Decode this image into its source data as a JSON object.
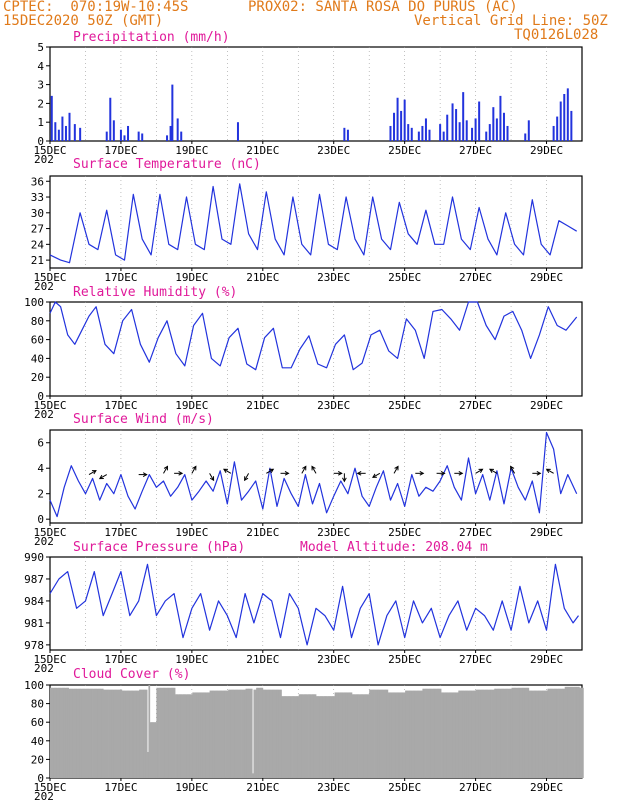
{
  "header": {
    "line1_left": "CPTEC:  070:19W-10:45S",
    "line1_right": "PROX02: SANTA ROSA DO PURUS (AC)",
    "line2_left": "15DEC2020 50Z (GMT)",
    "line2_right": "Vertical Grid Line: 50Z",
    "line3_right": "TQ0126L028"
  },
  "x_labels": [
    "15DEC",
    "17DEC",
    "19DEC",
    "21DEC",
    "23DEC",
    "25DEC",
    "27DEC",
    "29DEC"
  ],
  "x_sublabel": "202",
  "colors": {
    "line": "#2233dd",
    "bar": "#2233dd",
    "cloud": "#a9a9a9",
    "title": "#e0199a",
    "header": "#e07a1a"
  },
  "chart_data": [
    {
      "type": "bar",
      "title": "Precipitation (mm/h)",
      "ylim": [
        0,
        5
      ],
      "yticks": [
        0,
        1,
        2,
        3,
        4,
        5
      ],
      "x_days_from_15DEC": [
        0.05,
        0.15,
        0.25,
        0.35,
        0.45,
        0.55,
        0.7,
        0.85,
        1.6,
        1.7,
        1.8,
        2.0,
        2.1,
        2.2,
        2.5,
        2.6,
        3.3,
        3.4,
        3.45,
        3.6,
        3.7,
        5.3,
        8.3,
        8.4,
        9.6,
        9.7,
        9.8,
        9.9,
        10.0,
        10.1,
        10.2,
        10.4,
        10.5,
        10.6,
        10.7,
        11.0,
        11.1,
        11.2,
        11.35,
        11.45,
        11.55,
        11.65,
        11.75,
        11.9,
        12.0,
        12.1,
        12.3,
        12.4,
        12.5,
        12.6,
        12.7,
        12.8,
        12.9,
        13.4,
        13.5,
        14.2,
        14.3,
        14.4,
        14.5,
        14.6,
        14.7
      ],
      "values": [
        2.4,
        1.0,
        0.6,
        1.3,
        0.8,
        1.5,
        0.9,
        0.7,
        0.5,
        2.3,
        1.1,
        0.6,
        0.3,
        0.8,
        0.5,
        0.4,
        0.3,
        0.8,
        3.0,
        1.2,
        0.5,
        1.0,
        0.7,
        0.6,
        0.8,
        1.5,
        2.3,
        1.6,
        2.2,
        0.9,
        0.7,
        0.5,
        0.8,
        1.2,
        0.6,
        0.9,
        0.5,
        1.4,
        2.0,
        1.7,
        1.0,
        2.6,
        1.1,
        0.7,
        1.2,
        2.1,
        0.5,
        0.9,
        1.8,
        1.2,
        2.4,
        1.5,
        0.8,
        0.4,
        1.1,
        0.8,
        1.3,
        2.1,
        2.5,
        2.8,
        1.6
      ]
    },
    {
      "type": "line",
      "title": "Surface Temperature (nC)",
      "ylim": [
        19.5,
        37
      ],
      "yticks": [
        21,
        24,
        27,
        30,
        33,
        36
      ],
      "x_days_from_15DEC": [
        0,
        0.3,
        0.55,
        0.85,
        1.1,
        1.35,
        1.6,
        1.85,
        2.1,
        2.35,
        2.6,
        2.85,
        3.1,
        3.35,
        3.6,
        3.85,
        4.1,
        4.35,
        4.6,
        4.85,
        5.1,
        5.35,
        5.6,
        5.85,
        6.1,
        6.35,
        6.6,
        6.85,
        7.1,
        7.35,
        7.6,
        7.85,
        8.1,
        8.35,
        8.6,
        8.85,
        9.1,
        9.35,
        9.6,
        9.85,
        10.1,
        10.35,
        10.6,
        10.85,
        11.1,
        11.35,
        11.6,
        11.85,
        12.1,
        12.35,
        12.6,
        12.85,
        13.1,
        13.35,
        13.6,
        13.85,
        14.1,
        14.35,
        14.6,
        14.85
      ],
      "values": [
        22,
        21,
        20.5,
        30,
        24,
        23,
        30.5,
        22,
        21,
        33.5,
        25,
        22,
        33.5,
        24,
        23,
        33,
        24,
        23,
        35,
        25,
        24,
        35.5,
        26,
        23,
        34,
        25,
        22,
        33,
        24,
        22,
        33.5,
        24,
        23,
        33,
        25,
        22,
        33,
        25,
        23,
        32,
        26,
        24,
        30.5,
        24,
        24,
        33,
        25,
        23,
        31,
        25,
        22,
        30,
        24,
        22,
        32.5,
        24,
        22,
        28.5,
        27.5,
        26.5
      ]
    },
    {
      "type": "line",
      "title": "Relative Humidity (%)",
      "ylim": [
        0,
        100
      ],
      "yticks": [
        0,
        20,
        40,
        60,
        80,
        100
      ],
      "x_days_from_15DEC": [
        0,
        0.15,
        0.3,
        0.5,
        0.7,
        0.9,
        1.1,
        1.3,
        1.55,
        1.8,
        2.05,
        2.3,
        2.55,
        2.8,
        3.05,
        3.3,
        3.55,
        3.8,
        4.05,
        4.3,
        4.55,
        4.8,
        5.05,
        5.3,
        5.55,
        5.8,
        6.05,
        6.3,
        6.55,
        6.8,
        7.05,
        7.3,
        7.55,
        7.8,
        8.05,
        8.3,
        8.55,
        8.8,
        9.05,
        9.3,
        9.55,
        9.8,
        10.05,
        10.3,
        10.55,
        10.8,
        11.05,
        11.3,
        11.55,
        11.8,
        12.05,
        12.3,
        12.55,
        12.8,
        13.05,
        13.3,
        13.55,
        13.8,
        14.05,
        14.3,
        14.55,
        14.85
      ],
      "values": [
        88,
        100,
        95,
        65,
        55,
        70,
        85,
        95,
        55,
        45,
        80,
        92,
        55,
        36,
        62,
        80,
        45,
        32,
        75,
        88,
        40,
        32,
        62,
        72,
        34,
        28,
        62,
        72,
        30,
        30,
        50,
        64,
        34,
        30,
        55,
        65,
        28,
        35,
        65,
        70,
        48,
        40,
        82,
        70,
        40,
        90,
        92,
        82,
        70,
        100,
        100,
        75,
        60,
        85,
        90,
        70,
        40,
        65,
        95,
        75,
        70,
        84
      ]
    },
    {
      "type": "line",
      "title": "Surface Wind (m/s)",
      "ylim": [
        -0.3,
        7
      ],
      "yticks": [
        0,
        2,
        4,
        6
      ],
      "x_days_from_15DEC": [
        0,
        0.2,
        0.4,
        0.6,
        0.8,
        1.0,
        1.2,
        1.4,
        1.6,
        1.8,
        2.0,
        2.2,
        2.4,
        2.6,
        2.8,
        3.0,
        3.2,
        3.4,
        3.6,
        3.8,
        4.0,
        4.2,
        4.4,
        4.6,
        4.8,
        5.0,
        5.2,
        5.4,
        5.6,
        5.8,
        6.0,
        6.2,
        6.4,
        6.6,
        6.8,
        7.0,
        7.2,
        7.4,
        7.6,
        7.8,
        8.0,
        8.2,
        8.4,
        8.6,
        8.8,
        9.0,
        9.2,
        9.4,
        9.6,
        9.8,
        10.0,
        10.2,
        10.4,
        10.6,
        10.8,
        11.0,
        11.2,
        11.4,
        11.6,
        11.8,
        12.0,
        12.2,
        12.4,
        12.6,
        12.8,
        13.0,
        13.2,
        13.4,
        13.6,
        13.8,
        14.0,
        14.2,
        14.4,
        14.6,
        14.85
      ],
      "values": [
        1.5,
        0.2,
        2.5,
        4.2,
        3.0,
        2.0,
        3.2,
        1.5,
        2.8,
        2.0,
        3.5,
        1.8,
        0.8,
        2.2,
        3.5,
        2.5,
        3.0,
        1.8,
        2.5,
        3.5,
        1.5,
        2.2,
        3.0,
        2.2,
        3.8,
        1.2,
        4.5,
        1.5,
        2.2,
        3.0,
        0.8,
        4.0,
        1.0,
        3.2,
        2.0,
        1.0,
        3.5,
        1.2,
        2.8,
        0.5,
        1.8,
        3.0,
        2.0,
        4.0,
        1.8,
        1.0,
        2.5,
        3.8,
        1.5,
        2.8,
        1.0,
        3.5,
        1.8,
        2.5,
        2.2,
        3.0,
        4.2,
        2.5,
        1.5,
        4.8,
        2.0,
        3.5,
        1.5,
        3.8,
        1.2,
        4.0,
        2.5,
        1.5,
        3.0,
        0.5,
        6.8,
        5.5,
        2.0,
        3.5,
        2.0
      ]
    },
    {
      "type": "line",
      "title": "Surface Pressure (hPa)",
      "annotation": "Model Altitude: 208.04 m",
      "ylim": [
        977.3,
        990
      ],
      "yticks": [
        978,
        981,
        984,
        987,
        990
      ],
      "x_days_from_15DEC": [
        0,
        0.25,
        0.5,
        0.75,
        1.0,
        1.25,
        1.5,
        1.75,
        2.0,
        2.25,
        2.5,
        2.75,
        3.0,
        3.25,
        3.5,
        3.75,
        4.0,
        4.25,
        4.5,
        4.75,
        5.0,
        5.25,
        5.5,
        5.75,
        6.0,
        6.25,
        6.5,
        6.75,
        7.0,
        7.25,
        7.5,
        7.75,
        8.0,
        8.25,
        8.5,
        8.75,
        9.0,
        9.25,
        9.5,
        9.75,
        10.0,
        10.25,
        10.5,
        10.75,
        11.0,
        11.25,
        11.5,
        11.75,
        12.0,
        12.25,
        12.5,
        12.75,
        13.0,
        13.25,
        13.5,
        13.75,
        14.0,
        14.25,
        14.5,
        14.75,
        14.9
      ],
      "values": [
        985,
        987,
        988,
        983,
        984,
        988,
        982,
        985,
        988,
        982,
        984,
        989,
        982,
        984,
        985,
        979,
        983,
        985,
        980,
        984,
        982,
        979,
        985,
        981,
        985,
        984,
        979,
        985,
        983,
        978,
        983,
        982,
        980,
        986,
        979,
        983,
        985,
        978,
        982,
        984,
        979,
        984,
        981,
        983,
        979,
        982,
        984,
        980,
        983,
        982,
        980,
        984,
        980,
        986,
        981,
        984,
        980,
        989,
        983,
        981,
        982
      ]
    },
    {
      "type": "bar",
      "title": "Cloud Cover (%)",
      "ylim": [
        0,
        100
      ],
      "yticks": [
        0,
        20,
        40,
        60,
        80,
        100
      ],
      "x_days_from_15DEC": [
        0,
        0.5,
        1.0,
        1.5,
        2.0,
        2.5,
        2.7,
        2.75,
        2.8,
        3.0,
        3.5,
        4.0,
        4.5,
        5.0,
        5.5,
        5.7,
        5.72,
        5.8,
        6.0,
        6.5,
        7.0,
        7.5,
        8.0,
        8.5,
        9.0,
        9.5,
        10.0,
        10.5,
        11.0,
        11.5,
        12.0,
        12.5,
        13.0,
        13.5,
        14.0,
        14.5,
        14.9
      ],
      "values": [
        97,
        96,
        96,
        95,
        94,
        95,
        28,
        100,
        60,
        97,
        90,
        92,
        94,
        95,
        96,
        5,
        95,
        97,
        95,
        88,
        90,
        88,
        92,
        90,
        95,
        92,
        94,
        96,
        92,
        94,
        95,
        96,
        97,
        94,
        96,
        98,
        97
      ]
    }
  ]
}
